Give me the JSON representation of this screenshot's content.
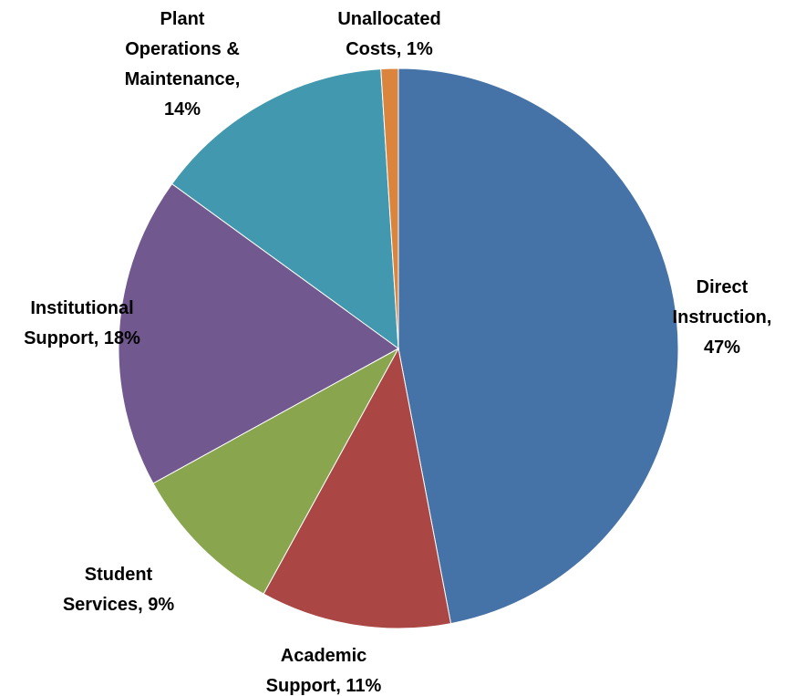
{
  "chart_data": {
    "type": "pie",
    "title": "",
    "start_angle_deg": 0,
    "direction": "clockwise",
    "slices": [
      {
        "name": "Direct Instruction",
        "value": 47,
        "label_lines": [
          "Direct",
          "Instruction,",
          "47%"
        ],
        "color": "#4572A7"
      },
      {
        "name": "Academic Support",
        "value": 11,
        "label_lines": [
          "Academic",
          "Support, 11%"
        ],
        "color": "#AA4643"
      },
      {
        "name": "Student Services",
        "value": 9,
        "label_lines": [
          "Student",
          "Services, 9%"
        ],
        "color": "#89A54E"
      },
      {
        "name": "Institutional Support",
        "value": 18,
        "label_lines": [
          "Institutional",
          "Support, 18%"
        ],
        "color": "#71588F"
      },
      {
        "name": "Plant Operations & Maintenance",
        "value": 14,
        "label_lines": [
          "Plant",
          "Operations &",
          "Maintenance,",
          "14%"
        ],
        "color": "#4198AF"
      },
      {
        "name": "Unallocated Costs",
        "value": 1,
        "label_lines": [
          "Unallocated",
          "Costs, 1%"
        ],
        "color": "#DB843D"
      }
    ]
  }
}
